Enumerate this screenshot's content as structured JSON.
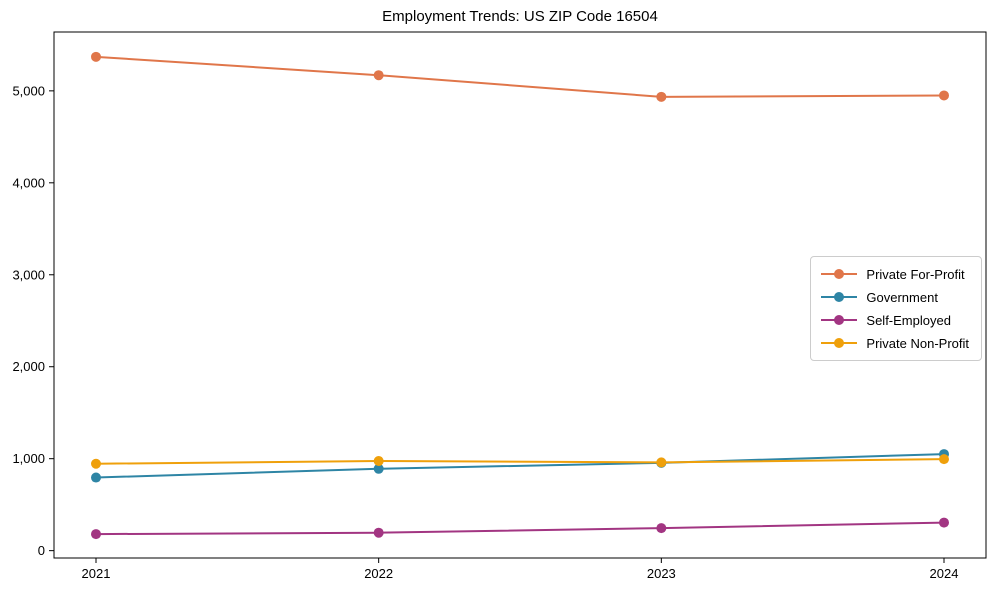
{
  "chart_data": {
    "type": "line",
    "title": "Employment Trends: US ZIP Code 16504",
    "x": [
      2021,
      2022,
      2023,
      2024
    ],
    "xtick_labels": [
      "2021",
      "2022",
      "2023",
      "2024"
    ],
    "series": [
      {
        "name": "Private For-Profit",
        "color": "#e0764a",
        "values": [
          5370,
          5170,
          4935,
          4950
        ]
      },
      {
        "name": "Government",
        "color": "#2e85a5",
        "values": [
          795,
          890,
          955,
          1050
        ]
      },
      {
        "name": "Self-Employed",
        "color": "#a23582",
        "values": [
          180,
          195,
          245,
          305
        ]
      },
      {
        "name": "Private Non-Profit",
        "color": "#efa00b",
        "values": [
          945,
          975,
          960,
          995
        ]
      }
    ],
    "xlabel": "",
    "ylabel": "",
    "ylim": [
      -80,
      5640
    ],
    "yticks": [
      0,
      1000,
      2000,
      3000,
      4000,
      5000
    ],
    "ytick_labels": [
      "0",
      "1,000",
      "2,000",
      "3,000",
      "4,000",
      "5,000"
    ],
    "grid": false,
    "frame": true,
    "legend_position": "center-right",
    "marker": "circle",
    "axis_color": "#000000"
  }
}
